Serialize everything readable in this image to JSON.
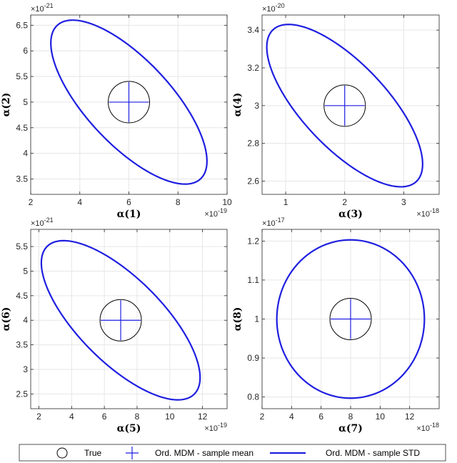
{
  "colors": {
    "ellipse": "#1f1fe0",
    "mean": "#1f1fe0",
    "true": "#000000",
    "grid": "#e6e6e6",
    "axis": "#262626"
  },
  "legend": {
    "placement": "bottom",
    "items": [
      {
        "marker": "circle",
        "label": "True"
      },
      {
        "marker": "plus",
        "label": "Ord. MDM - sample mean"
      },
      {
        "marker": "line",
        "label": "Ord. MDM - sample STD"
      }
    ]
  },
  "chart_data": [
    {
      "type": "scatter",
      "xlabel": "α(1)",
      "ylabel": "α(2)",
      "x_exponent": "×10",
      "x_exponent_power": "-19",
      "y_exponent": "×10",
      "y_exponent_power": "-21",
      "xlim": [
        2,
        10
      ],
      "ylim": [
        3.2,
        6.7
      ],
      "xticks": [
        2,
        4,
        6,
        8,
        10
      ],
      "yticks": [
        3.5,
        4,
        4.5,
        5,
        5.5,
        6,
        6.5
      ],
      "xtick_labels": [
        "2",
        "4",
        "6",
        "8",
        "10"
      ],
      "ytick_labels": [
        "3.5",
        "4",
        "4.5",
        "5",
        "5.5",
        "6",
        "6.5"
      ],
      "true": {
        "x": 6,
        "y": 5
      },
      "mean": {
        "x": 6,
        "y": 5
      },
      "std_ellipse": {
        "cx": 6,
        "cy": 5,
        "sx": 3.18,
        "sy": 1.6,
        "rho": -0.72
      },
      "grid": true
    },
    {
      "type": "scatter",
      "xlabel": "α(3)",
      "ylabel": "α(4)",
      "x_exponent": "×10",
      "x_exponent_power": "-18",
      "y_exponent": "×10",
      "y_exponent_power": "-20",
      "xlim": [
        0.6,
        3.6
      ],
      "ylim": [
        2.53,
        3.48
      ],
      "xticks": [
        1,
        2,
        3
      ],
      "yticks": [
        2.6,
        2.8,
        3,
        3.2,
        3.4
      ],
      "xtick_labels": [
        "1",
        "2",
        "3"
      ],
      "ytick_labels": [
        "2.6",
        "2.8",
        "3",
        "3.2",
        "3.4"
      ],
      "true": {
        "x": 2,
        "y": 3
      },
      "mean": {
        "x": 2,
        "y": 3
      },
      "std_ellipse": {
        "cx": 2,
        "cy": 3,
        "sx": 1.32,
        "sy": 0.43,
        "rho": -0.72
      },
      "grid": true
    },
    {
      "type": "scatter",
      "xlabel": "α(5)",
      "ylabel": "α(6)",
      "x_exponent": "×10",
      "x_exponent_power": "-19",
      "y_exponent": "×10",
      "y_exponent_power": "-21",
      "xlim": [
        1.5,
        13.5
      ],
      "ylim": [
        2.2,
        5.85
      ],
      "xticks": [
        2,
        4,
        6,
        8,
        10,
        12
      ],
      "yticks": [
        2.5,
        3,
        3.5,
        4,
        4.5,
        5,
        5.5
      ],
      "xtick_labels": [
        "2",
        "4",
        "6",
        "8",
        "10",
        "12"
      ],
      "ytick_labels": [
        "2.5",
        "3",
        "3.5",
        "4",
        "4.5",
        "5",
        "5.5"
      ],
      "true": {
        "x": 7,
        "y": 4
      },
      "mean": {
        "x": 7,
        "y": 4
      },
      "std_ellipse": {
        "cx": 7,
        "cy": 4,
        "sx": 4.85,
        "sy": 1.62,
        "rho": -0.72
      },
      "grid": true
    },
    {
      "type": "scatter",
      "xlabel": "α(7)",
      "ylabel": "α(8)",
      "x_exponent": "×10",
      "x_exponent_power": "-18",
      "y_exponent": "×10",
      "y_exponent_power": "-17",
      "xlim": [
        2,
        14
      ],
      "ylim": [
        0.77,
        1.23
      ],
      "xticks": [
        2,
        4,
        6,
        8,
        10,
        12
      ],
      "yticks": [
        0.8,
        0.9,
        1,
        1.1,
        1.2
      ],
      "xtick_labels": [
        "2",
        "4",
        "6",
        "8",
        "10",
        "12"
      ],
      "ytick_labels": [
        "0.8",
        "0.9",
        "1",
        "1.1",
        "1.2"
      ],
      "true": {
        "x": 8,
        "y": 1
      },
      "mean": {
        "x": 8,
        "y": 1
      },
      "std_ellipse": {
        "cx": 8,
        "cy": 1,
        "sx": 5,
        "sy": 0.203,
        "rho": 0
      },
      "grid": true
    }
  ]
}
